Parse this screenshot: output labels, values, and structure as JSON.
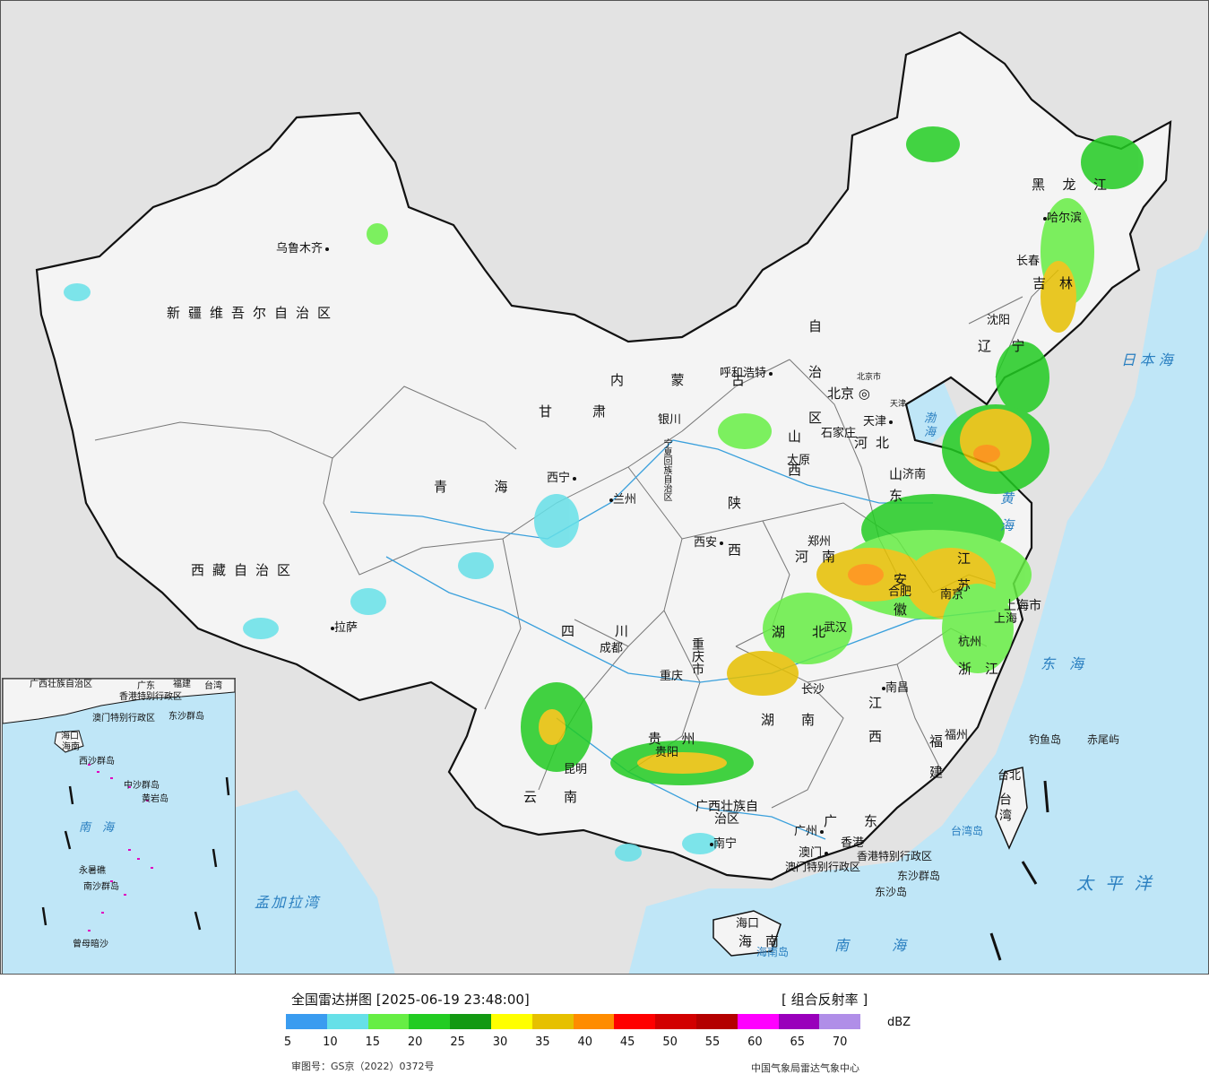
{
  "colors": {
    "ocean": "#bfe6f7",
    "land": "#f4f4f4",
    "outside": "#e3e3e3",
    "border": "#111111",
    "river": "#3aa0dc"
  },
  "map": {
    "provinces": [
      "新疆维吾尔自治区",
      "西藏自治区",
      "青海",
      "甘肃",
      "内蒙古",
      "自治区",
      "河北",
      "山西",
      "陕西",
      "四川",
      "云南",
      "贵州",
      "广西壮族自治区",
      "广东",
      "湖南",
      "湖北",
      "江西",
      "福建",
      "浙江",
      "江苏",
      "安徽",
      "河南",
      "山东",
      "辽宁",
      "吉林",
      "黑龙江",
      "重庆市",
      "宁夏回族自治区",
      "海南",
      "台湾",
      "上海市",
      "香港特别行政区",
      "澳门特别行政区",
      "北京市",
      "天津"
    ],
    "cities": [
      "乌鲁木齐",
      "拉萨",
      "西宁",
      "兰州",
      "银川",
      "呼和浩特",
      "北京",
      "天津",
      "石家庄",
      "太原",
      "西安",
      "郑州",
      "济南",
      "成都",
      "重庆",
      "贵阳",
      "昆明",
      "南宁",
      "广州",
      "澳门",
      "香港",
      "海口",
      "长沙",
      "武汉",
      "南昌",
      "福州",
      "台北",
      "杭州",
      "上海",
      "南京",
      "合肥",
      "沈阳",
      "长春",
      "哈尔滨"
    ],
    "seas": [
      "日本海",
      "渤海",
      "黄海",
      "东海",
      "太平洋",
      "南海",
      "孟加拉湾",
      "台湾岛",
      "海南岛"
    ],
    "islands": [
      "钓鱼岛",
      "赤尾屿",
      "东沙群岛",
      "东沙岛"
    ],
    "inset": {
      "labels": [
        "广西壮族自治区",
        "广东",
        "福建",
        "台湾",
        "海口",
        "海南",
        "香港特别行政区",
        "澳门特别行政区",
        "东沙群岛",
        "西沙群岛",
        "中沙群岛",
        "黄岩岛",
        "南海",
        "永暑礁",
        "南沙群岛",
        "曾母暗沙"
      ]
    }
  },
  "legend": {
    "title": "全国雷达拼图 [2025-06-19 23:48:00]",
    "product": "[ 组合反射率 ]",
    "unit": "dBZ",
    "ticks": [
      "5",
      "10",
      "15",
      "20",
      "25",
      "30",
      "35",
      "40",
      "45",
      "50",
      "55",
      "60",
      "65",
      "70"
    ],
    "scale_colors": [
      "#3a9cf0",
      "#66e0e8",
      "#66ee44",
      "#22cc22",
      "#129912",
      "#ffff00",
      "#e6c000",
      "#ff8c00",
      "#ff0000",
      "#d20000",
      "#b40000",
      "#ff00ff",
      "#9900bb",
      "#b08ee8"
    ],
    "review_number": "审图号：GS京（2022）0372号",
    "agency": "中国气象局雷达气象中心"
  }
}
